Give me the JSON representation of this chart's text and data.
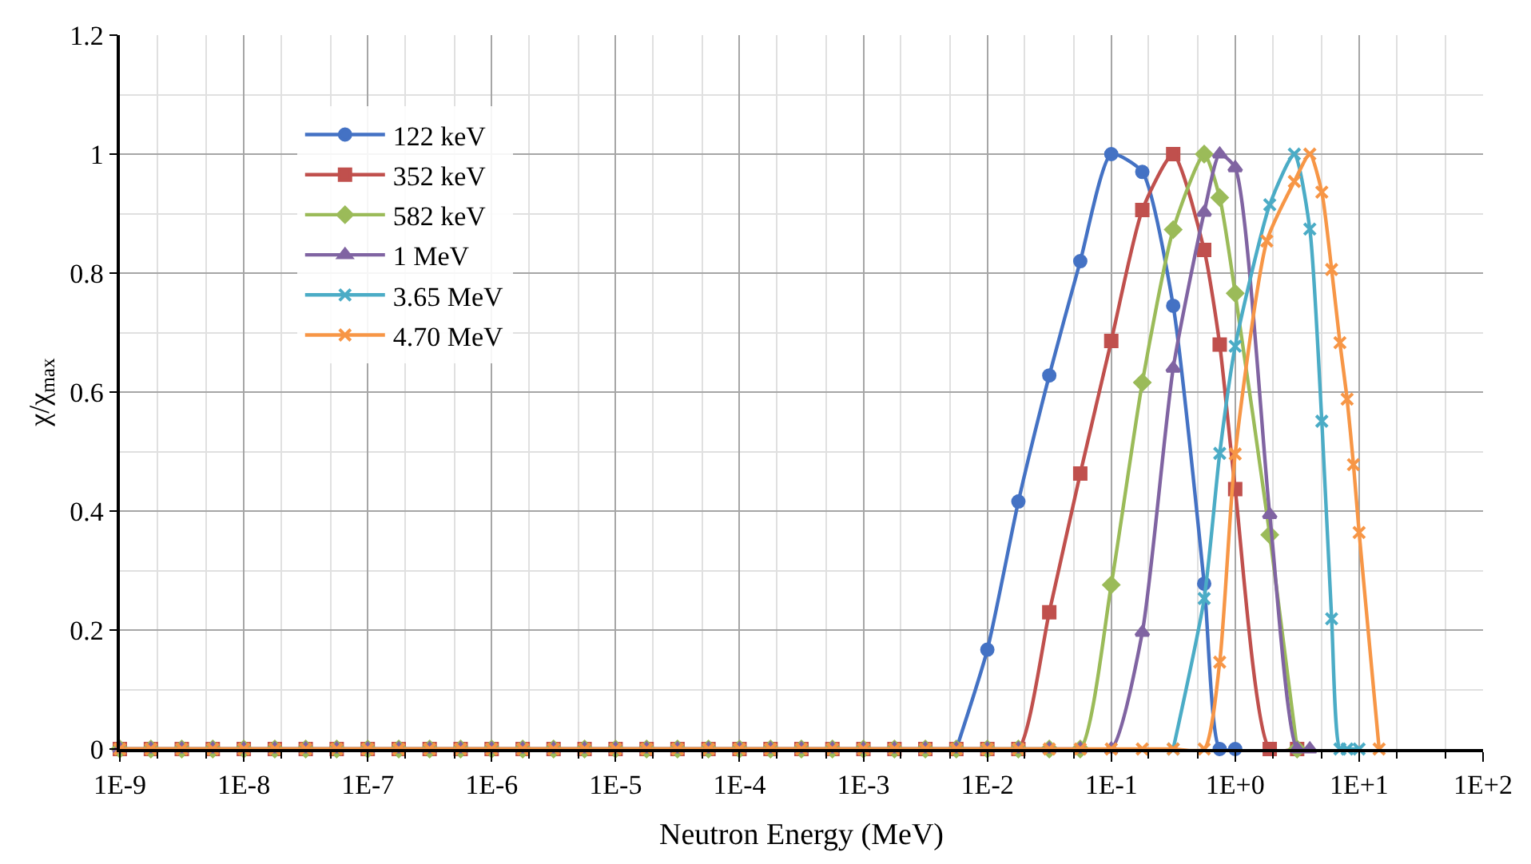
{
  "chart_data": {
    "type": "line",
    "xlabel": "Neutron Energy (MeV)",
    "ylabel": "χ/χ$_{max}$",
    "log": "x",
    "xlim": [
      1e-09,
      100
    ],
    "xticks": [
      {
        "value": 1e-09,
        "label": "1E-9"
      },
      {
        "value": 1e-08,
        "label": "1E-8"
      },
      {
        "value": 1e-07,
        "label": "1E-7"
      },
      {
        "value": 1e-06,
        "label": "1E-6"
      },
      {
        "value": 1e-05,
        "label": "1E-5"
      },
      {
        "value": 0.0001,
        "label": "1E-4"
      },
      {
        "value": 0.001,
        "label": "1E-3"
      },
      {
        "value": 0.01,
        "label": "1E-2"
      },
      {
        "value": 0.1,
        "label": "1E-1"
      },
      {
        "value": 1,
        "label": "1E+0"
      },
      {
        "value": 10,
        "label": "1E+1"
      },
      {
        "value": 100,
        "label": "1E+2"
      }
    ],
    "ylim": [
      0,
      1.2
    ],
    "yticks": [
      0,
      0.2,
      0.4,
      0.6,
      0.8,
      1,
      1.2
    ],
    "grid": true,
    "legend": "top left",
    "series": [
      {
        "name": "122 keV",
        "color": "#4472c4",
        "marker": "circle",
        "x": [
          0.00562,
          0.01,
          0.0178,
          0.0316,
          0.0562,
          0.1,
          0.178,
          0.316,
          0.562,
          0.75,
          1
        ],
        "values": [
          0,
          0.167,
          0.416,
          0.628,
          0.82,
          1.0,
          0.97,
          0.745,
          0.278,
          0,
          0
        ]
      },
      {
        "name": "352 keV",
        "color": "#c0504d",
        "marker": "square",
        "x": [
          1e-09,
          1.78e-09,
          3.16e-09,
          5.62e-09,
          1e-08,
          1.78e-08,
          3.16e-08,
          5.62e-08,
          1e-07,
          1.78e-07,
          3.16e-07,
          5.62e-07,
          1e-06,
          1.78e-06,
          3.16e-06,
          5.62e-06,
          1e-05,
          1.78e-05,
          3.16e-05,
          5.62e-05,
          0.0001,
          0.000178,
          0.000316,
          0.000562,
          0.001,
          0.00178,
          0.00316,
          0.00562,
          0.01,
          0.0178,
          0.0316,
          0.0562,
          0.1,
          0.178,
          0.316,
          0.562,
          0.75,
          1,
          1.9,
          3.16
        ],
        "values": [
          0,
          0,
          0,
          0,
          0,
          0,
          0,
          0,
          0,
          0,
          0,
          0,
          0,
          0,
          0,
          0,
          0,
          0,
          0,
          0,
          0,
          0,
          0,
          0,
          0,
          0,
          0,
          0,
          0,
          0,
          0.23,
          0.463,
          0.686,
          0.906,
          1.0,
          0.839,
          0.68,
          0.437,
          0,
          0
        ]
      },
      {
        "name": "582 keV",
        "color": "#9bbb59",
        "marker": "diamond",
        "x": [
          1e-09,
          1.78e-09,
          3.16e-09,
          5.62e-09,
          1e-08,
          1.78e-08,
          3.16e-08,
          5.62e-08,
          1e-07,
          1.78e-07,
          3.16e-07,
          5.62e-07,
          1e-06,
          1.78e-06,
          3.16e-06,
          5.62e-06,
          1e-05,
          1.78e-05,
          3.16e-05,
          5.62e-05,
          0.0001,
          0.000178,
          0.000316,
          0.000562,
          0.001,
          0.00178,
          0.00316,
          0.00562,
          0.01,
          0.0178,
          0.0316,
          0.0562,
          0.1,
          0.178,
          0.316,
          0.562,
          0.75,
          1,
          1.9,
          3.16
        ],
        "values": [
          0,
          0,
          0,
          0,
          0,
          0,
          0,
          0,
          0,
          0,
          0,
          0,
          0,
          0,
          0,
          0,
          0,
          0,
          0,
          0,
          0,
          0,
          0,
          0,
          0,
          0,
          0,
          0,
          0,
          0,
          0,
          0,
          0.276,
          0.616,
          0.873,
          1.0,
          0.927,
          0.766,
          0.36,
          0
        ]
      },
      {
        "name": "1 MeV",
        "color": "#8064a2",
        "marker": "triangle",
        "x": [
          1e-09,
          1.78e-09,
          3.16e-09,
          5.62e-09,
          1e-08,
          1.78e-08,
          3.16e-08,
          5.62e-08,
          1e-07,
          1.78e-07,
          3.16e-07,
          5.62e-07,
          1e-06,
          1.78e-06,
          3.16e-06,
          5.62e-06,
          1e-05,
          1.78e-05,
          3.16e-05,
          5.62e-05,
          0.0001,
          0.000178,
          0.000316,
          0.000562,
          0.001,
          0.00178,
          0.00316,
          0.00562,
          0.01,
          0.0178,
          0.0316,
          0.0562,
          0.1,
          0.178,
          0.316,
          0.562,
          0.75,
          1,
          1.9,
          3.16,
          4
        ],
        "values": [
          0,
          0,
          0,
          0,
          0,
          0,
          0,
          0,
          0,
          0,
          0,
          0,
          0,
          0,
          0,
          0,
          0,
          0,
          0,
          0,
          0,
          0,
          0,
          0,
          0,
          0,
          0,
          0,
          0,
          0,
          0,
          0,
          0,
          0.196,
          0.64,
          0.902,
          1.0,
          0.977,
          0.394,
          0,
          0
        ]
      },
      {
        "name": "3.65 MeV",
        "color": "#4bacc6",
        "marker": "cross",
        "x": [
          0.316,
          0.562,
          0.75,
          1,
          1.9,
          3,
          4,
          5,
          6,
          7,
          8,
          10
        ],
        "values": [
          0,
          0.253,
          0.497,
          0.677,
          0.915,
          1.0,
          0.874,
          0.551,
          0.219,
          0,
          0,
          0
        ]
      },
      {
        "name": "4.70 MeV",
        "color": "#f79646",
        "marker": "cross",
        "x": [
          1e-09,
          1.78e-09,
          3.16e-09,
          5.62e-09,
          1e-08,
          1.78e-08,
          3.16e-08,
          5.62e-08,
          1e-07,
          1.78e-07,
          3.16e-07,
          5.62e-07,
          1e-06,
          1.78e-06,
          3.16e-06,
          5.62e-06,
          1e-05,
          1.78e-05,
          3.16e-05,
          5.62e-05,
          0.0001,
          0.000178,
          0.000316,
          0.000562,
          0.001,
          0.00178,
          0.00316,
          0.00562,
          0.01,
          0.0178,
          0.0316,
          0.0562,
          0.1,
          0.178,
          0.316,
          0.562,
          0.75,
          1,
          1.8,
          3,
          4,
          5,
          6,
          7,
          8,
          9,
          10,
          14.5
        ],
        "values": [
          0,
          0,
          0,
          0,
          0,
          0,
          0,
          0,
          0,
          0,
          0,
          0,
          0,
          0,
          0,
          0,
          0,
          0,
          0,
          0,
          0,
          0,
          0,
          0,
          0,
          0,
          0,
          0,
          0,
          0,
          0,
          0,
          0,
          0,
          0,
          0,
          0.146,
          0.496,
          0.854,
          0.954,
          1.0,
          0.936,
          0.806,
          0.683,
          0.588,
          0.478,
          0.364,
          0
        ]
      }
    ]
  }
}
